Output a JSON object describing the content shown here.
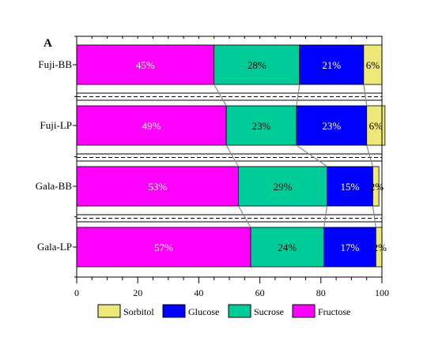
{
  "chart_data": {
    "type": "bar",
    "orientation": "horizontal",
    "stacked": true,
    "panel_label": "A",
    "categories": [
      "Fuji-BB",
      "Fuji-LP",
      "Gala-BB",
      "Gala-LP"
    ],
    "series": [
      {
        "name": "Fructose",
        "color": "#ff00ff",
        "values": [
          45,
          49,
          53,
          57
        ],
        "labels": [
          "45%",
          "49%",
          "53%",
          "57%"
        ],
        "label_color": "#ffffff"
      },
      {
        "name": "Sucrose",
        "color": "#00cc99",
        "values": [
          28,
          23,
          29,
          24
        ],
        "labels": [
          "28%",
          "23%",
          "29%",
          "24%"
        ],
        "label_color": "#000000"
      },
      {
        "name": "Glucose",
        "color": "#0000ff",
        "values": [
          21,
          23,
          15,
          17
        ],
        "labels": [
          "21%",
          "23%",
          "15%",
          "17%"
        ],
        "label_color": "#ffffff"
      },
      {
        "name": "Sorbitol",
        "color": "#eee77a",
        "values": [
          6,
          6,
          2,
          2
        ],
        "labels": [
          "6%",
          "6%",
          "2%",
          "2%"
        ],
        "label_color": "#000000"
      }
    ],
    "xlim": [
      0,
      100
    ],
    "xticks": [
      0,
      20,
      40,
      60,
      80,
      100
    ],
    "legend_order": [
      "Sorbitol",
      "Glucose",
      "Sucrose",
      "Fructose"
    ],
    "legend_position": "bottom",
    "grid": false,
    "connector_lines": true,
    "dashed_separators": true
  }
}
